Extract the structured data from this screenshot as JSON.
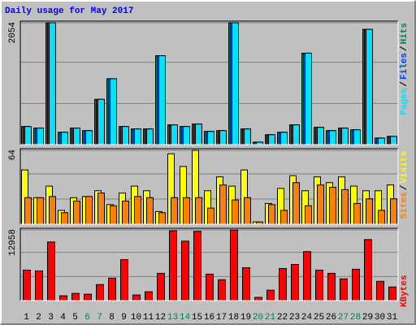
{
  "chart_data": [
    {
      "type": "bar",
      "title": "Daily usage for May 2017",
      "ylim": [
        0,
        2054
      ],
      "yticks": [
        2054
      ],
      "series": [
        {
          "name": "Hits",
          "color": "#00805c",
          "values": [
            305,
            278,
            2054,
            208,
            278,
            236,
            763,
            1110,
            305,
            264,
            264,
            1499,
            333,
            305,
            347,
            222,
            236,
            2054,
            264,
            42,
            167,
            208,
            333,
            1541,
            291,
            236,
            278,
            250,
            1943,
            111,
            139
          ]
        },
        {
          "name": "Files",
          "color": "#0040ff",
          "values": [
            305,
            278,
            2054,
            208,
            278,
            236,
            763,
            1110,
            305,
            264,
            264,
            1499,
            333,
            305,
            347,
            222,
            236,
            2054,
            264,
            42,
            167,
            208,
            333,
            1541,
            291,
            236,
            278,
            250,
            1943,
            111,
            139
          ]
        },
        {
          "name": "Pages",
          "color": "#00e0ff",
          "values": [
            305,
            278,
            2054,
            208,
            278,
            236,
            763,
            1110,
            305,
            264,
            264,
            1499,
            333,
            305,
            347,
            222,
            236,
            2054,
            264,
            42,
            167,
            208,
            333,
            1541,
            291,
            236,
            278,
            250,
            1943,
            111,
            139
          ]
        }
      ],
      "legend_separator": "/"
    },
    {
      "type": "bar",
      "ylim": [
        0,
        64
      ],
      "yticks": [
        64
      ],
      "series": [
        {
          "name": "Visits",
          "color": "#ffff00",
          "values": [
            47,
            23,
            33,
            12,
            23,
            24,
            29,
            17,
            27,
            33,
            29,
            11,
            61,
            50,
            64,
            29,
            41,
            33,
            47,
            2,
            18,
            31,
            42,
            29,
            41,
            36,
            41,
            33,
            29,
            29,
            34
          ]
        },
        {
          "name": "Sites",
          "color": "#ff8000",
          "values": [
            23,
            23,
            24,
            10,
            20,
            24,
            27,
            16,
            20,
            24,
            23,
            10,
            23,
            23,
            23,
            14,
            34,
            21,
            23,
            2,
            17,
            12,
            36,
            16,
            34,
            32,
            30,
            18,
            22,
            12,
            22
          ]
        }
      ],
      "legend_separator": "/"
    },
    {
      "type": "bar",
      "ylim": [
        0,
        12958
      ],
      "yticks": [
        12958
      ],
      "categories": [
        "1",
        "2",
        "3",
        "4",
        "5",
        "6",
        "7",
        "8",
        "9",
        "10",
        "11",
        "12",
        "13",
        "14",
        "15",
        "16",
        "17",
        "18",
        "19",
        "20",
        "21",
        "22",
        "23",
        "24",
        "25",
        "26",
        "27",
        "28",
        "29",
        "30",
        "31"
      ],
      "label_colors": [
        "#000000",
        "#000000",
        "#000000",
        "#000000",
        "#000000",
        "#00805c",
        "#00805c",
        "#000000",
        "#000000",
        "#000000",
        "#000000",
        "#000000",
        "#00805c",
        "#00805c",
        "#000000",
        "#000000",
        "#000000",
        "#000000",
        "#000000",
        "#00805c",
        "#00805c",
        "#000000",
        "#000000",
        "#000000",
        "#000000",
        "#000000",
        "#00805c",
        "#00805c",
        "#000000",
        "#000000",
        "#000000"
      ],
      "series": [
        {
          "name": "KBytes",
          "color": "#ff0000",
          "values": [
            5596,
            5448,
            10750,
            884,
            1325,
            1178,
            2945,
            4123,
            7510,
            1031,
            1620,
            5006,
            12800,
            10897,
            12700,
            4859,
            3829,
            12958,
            6037,
            589,
            1914,
            5890,
            6626,
            8982,
            5596,
            5006,
            3976,
            5743,
            11191,
            3534,
            2503
          ]
        }
      ],
      "legend_separator": "/"
    }
  ]
}
